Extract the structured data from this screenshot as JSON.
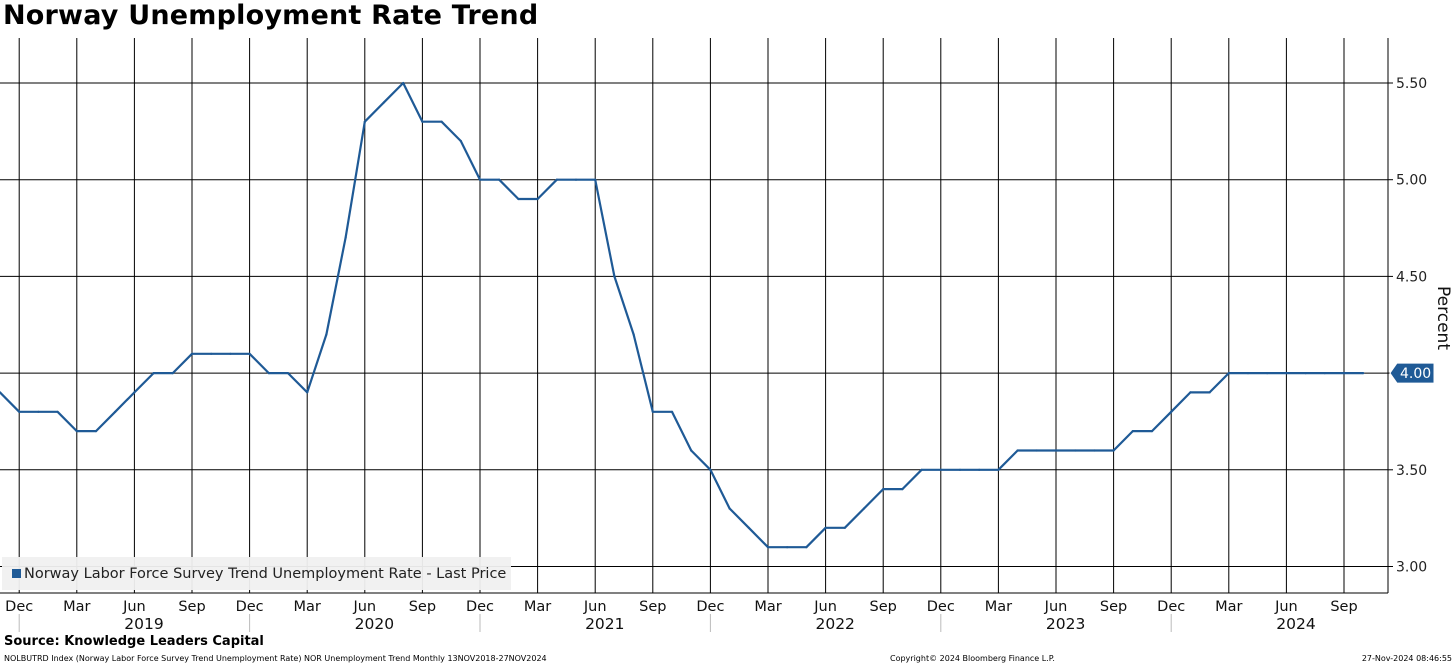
{
  "title": "Norway Unemployment Rate Trend",
  "source": "Source: Knowledge Leaders Capital",
  "footer": {
    "left": "NOLBUTRD Index (Norway Labor Force Survey Trend Unemployment Rate) NOR Unemployment Trend  Monthly 13NOV2018-27NOV2024",
    "middle": "Copyright© 2024 Bloomberg Finance L.P.",
    "right": "27-Nov-2024 08:46:55"
  },
  "colors": {
    "series": "#1f5a96",
    "grid": "#000000",
    "legend_bg": "#f0f0f0"
  },
  "chart_data": {
    "type": "line",
    "title": "Norway Unemployment Rate Trend",
    "ylabel": "Percent",
    "ylim": [
      2.9,
      5.75
    ],
    "yticks": [
      "3.00",
      "3.50",
      "4.00",
      "4.50",
      "5.00",
      "5.50"
    ],
    "y_axis_side": "right",
    "grid": true,
    "legend_position": "bottom-left",
    "x_start": "2018-11",
    "month_labels": [
      {
        "label": "Dec",
        "date": "2018-12"
      },
      {
        "label": "Mar",
        "date": "2019-03"
      },
      {
        "label": "Jun",
        "date": "2019-06"
      },
      {
        "label": "Sep",
        "date": "2019-09"
      },
      {
        "label": "Dec",
        "date": "2019-12"
      },
      {
        "label": "Mar",
        "date": "2020-03"
      },
      {
        "label": "Jun",
        "date": "2020-06"
      },
      {
        "label": "Sep",
        "date": "2020-09"
      },
      {
        "label": "Dec",
        "date": "2020-12"
      },
      {
        "label": "Mar",
        "date": "2021-03"
      },
      {
        "label": "Jun",
        "date": "2021-06"
      },
      {
        "label": "Sep",
        "date": "2021-09"
      },
      {
        "label": "Dec",
        "date": "2021-12"
      },
      {
        "label": "Mar",
        "date": "2022-03"
      },
      {
        "label": "Jun",
        "date": "2022-06"
      },
      {
        "label": "Sep",
        "date": "2022-09"
      },
      {
        "label": "Dec",
        "date": "2022-12"
      },
      {
        "label": "Mar",
        "date": "2023-03"
      },
      {
        "label": "Jun",
        "date": "2023-06"
      },
      {
        "label": "Sep",
        "date": "2023-09"
      },
      {
        "label": "Dec",
        "date": "2023-12"
      },
      {
        "label": "Mar",
        "date": "2024-03"
      },
      {
        "label": "Jun",
        "date": "2024-06"
      },
      {
        "label": "Sep",
        "date": "2024-09"
      }
    ],
    "year_labels": [
      {
        "label": "2019",
        "date": "2019-07"
      },
      {
        "label": "2020",
        "date": "2020-07"
      },
      {
        "label": "2021",
        "date": "2021-07"
      },
      {
        "label": "2022",
        "date": "2022-07"
      },
      {
        "label": "2023",
        "date": "2023-07"
      },
      {
        "label": "2024",
        "date": "2024-07"
      }
    ],
    "series": [
      {
        "name": "Norway Labor Force Survey Trend Unemployment Rate - Last Price",
        "last_value_label": "4.00",
        "points": [
          [
            "2018-11",
            3.9
          ],
          [
            "2018-12",
            3.8
          ],
          [
            "2019-01",
            3.8
          ],
          [
            "2019-02",
            3.8
          ],
          [
            "2019-03",
            3.7
          ],
          [
            "2019-04",
            3.7
          ],
          [
            "2019-05",
            3.8
          ],
          [
            "2019-06",
            3.9
          ],
          [
            "2019-07",
            4.0
          ],
          [
            "2019-08",
            4.0
          ],
          [
            "2019-09",
            4.1
          ],
          [
            "2019-10",
            4.1
          ],
          [
            "2019-11",
            4.1
          ],
          [
            "2019-12",
            4.1
          ],
          [
            "2020-01",
            4.0
          ],
          [
            "2020-02",
            4.0
          ],
          [
            "2020-03",
            3.9
          ],
          [
            "2020-04",
            4.2
          ],
          [
            "2020-05",
            4.7
          ],
          [
            "2020-06",
            5.3
          ],
          [
            "2020-07",
            5.4
          ],
          [
            "2020-08",
            5.5
          ],
          [
            "2020-09",
            5.3
          ],
          [
            "2020-10",
            5.3
          ],
          [
            "2020-11",
            5.2
          ],
          [
            "2020-12",
            5.0
          ],
          [
            "2021-01",
            5.0
          ],
          [
            "2021-02",
            4.9
          ],
          [
            "2021-03",
            4.9
          ],
          [
            "2021-04",
            5.0
          ],
          [
            "2021-05",
            5.0
          ],
          [
            "2021-06",
            5.0
          ],
          [
            "2021-07",
            4.5
          ],
          [
            "2021-08",
            4.2
          ],
          [
            "2021-09",
            3.8
          ],
          [
            "2021-10",
            3.8
          ],
          [
            "2021-11",
            3.6
          ],
          [
            "2021-12",
            3.5
          ],
          [
            "2022-01",
            3.3
          ],
          [
            "2022-02",
            3.2
          ],
          [
            "2022-03",
            3.1
          ],
          [
            "2022-04",
            3.1
          ],
          [
            "2022-05",
            3.1
          ],
          [
            "2022-06",
            3.2
          ],
          [
            "2022-07",
            3.2
          ],
          [
            "2022-08",
            3.3
          ],
          [
            "2022-09",
            3.4
          ],
          [
            "2022-10",
            3.4
          ],
          [
            "2022-11",
            3.5
          ],
          [
            "2022-12",
            3.5
          ],
          [
            "2023-01",
            3.5
          ],
          [
            "2023-02",
            3.5
          ],
          [
            "2023-03",
            3.5
          ],
          [
            "2023-04",
            3.6
          ],
          [
            "2023-05",
            3.6
          ],
          [
            "2023-06",
            3.6
          ],
          [
            "2023-07",
            3.6
          ],
          [
            "2023-08",
            3.6
          ],
          [
            "2023-09",
            3.6
          ],
          [
            "2023-10",
            3.7
          ],
          [
            "2023-11",
            3.7
          ],
          [
            "2023-12",
            3.8
          ],
          [
            "2024-01",
            3.9
          ],
          [
            "2024-02",
            3.9
          ],
          [
            "2024-03",
            4.0
          ],
          [
            "2024-04",
            4.0
          ],
          [
            "2024-05",
            4.0
          ],
          [
            "2024-06",
            4.0
          ],
          [
            "2024-07",
            4.0
          ],
          [
            "2024-08",
            4.0
          ],
          [
            "2024-09",
            4.0
          ],
          [
            "2024-10",
            4.0
          ]
        ]
      }
    ]
  }
}
